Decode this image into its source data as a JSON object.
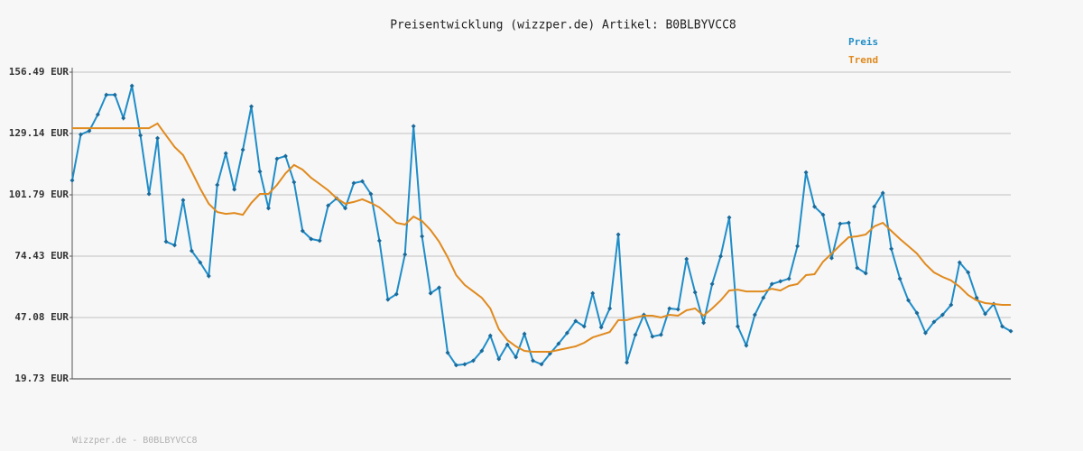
{
  "chart_data": {
    "type": "line",
    "title": "Preisentwicklung (wizzper.de) Artikel: B0BLBYVCC8",
    "footer": "Wizzper.de - B0BLBYVCC8",
    "ylim": [
      19.73,
      156.49
    ],
    "yticks": [
      {
        "value": 19.73,
        "label": "19.73 EUR"
      },
      {
        "value": 47.08,
        "label": "47.08 EUR"
      },
      {
        "value": 74.43,
        "label": "74.43 EUR"
      },
      {
        "value": 101.79,
        "label": "101.79 EUR"
      },
      {
        "value": 129.14,
        "label": "129.14 EUR"
      },
      {
        "value": 156.49,
        "label": "156.49 EUR"
      }
    ],
    "grid": true,
    "legend": "top-right",
    "series": [
      {
        "name": "Preis",
        "color": "#1f8dc8",
        "markers": true,
        "values": [
          108.2,
          128.7,
          130.3,
          137.6,
          146.4,
          146.4,
          136.0,
          150.4,
          128.3,
          102.2,
          127.1,
          80.9,
          79.3,
          99.4,
          76.8,
          71.6,
          65.6,
          106.2,
          120.3,
          104.2,
          121.9,
          141.2,
          112.2,
          95.8,
          117.9,
          119.1,
          107.4,
          85.7,
          82.1,
          81.3,
          97.0,
          100.2,
          95.8,
          107.0,
          107.8,
          102.2,
          81.3,
          55.1,
          57.5,
          75.2,
          132.4,
          83.3,
          57.9,
          60.4,
          31.4,
          25.8,
          26.2,
          27.8,
          32.2,
          39.0,
          28.6,
          35.0,
          29.4,
          39.8,
          27.8,
          26.2,
          31.0,
          35.4,
          40.2,
          45.5,
          43.1,
          57.9,
          42.7,
          51.1,
          84.1,
          27.0,
          39.4,
          48.3,
          38.6,
          39.4,
          51.1,
          50.7,
          73.2,
          58.3,
          44.7,
          62.0,
          74.4,
          91.7,
          43.1,
          34.6,
          48.3,
          55.9,
          62.0,
          63.2,
          64.4,
          78.9,
          111.8,
          96.5,
          92.9,
          73.6,
          88.9,
          89.3,
          69.2,
          66.8,
          96.5,
          102.6,
          77.7,
          64.4,
          54.7,
          49.1,
          40.2,
          45.1,
          48.3,
          52.7,
          71.6,
          67.2,
          55.9,
          48.7,
          53.1,
          43.1,
          41.0
        ]
      },
      {
        "name": "Trend",
        "color": "#e08a1e",
        "markers": false,
        "values": [
          131.5,
          131.5,
          131.5,
          131.5,
          131.5,
          131.5,
          131.5,
          131.5,
          131.5,
          131.5,
          133.6,
          128.3,
          123.1,
          119.5,
          112.2,
          104.6,
          97.8,
          94.1,
          93.3,
          93.7,
          92.9,
          98.2,
          102.2,
          102.2,
          106.2,
          111.4,
          115.1,
          113.0,
          109.4,
          106.6,
          103.8,
          100.2,
          97.8,
          98.6,
          99.8,
          98.2,
          96.2,
          92.9,
          89.3,
          88.5,
          92.1,
          90.1,
          86.1,
          80.9,
          74.0,
          66.0,
          61.6,
          58.7,
          55.9,
          51.1,
          41.9,
          37.0,
          34.2,
          32.2,
          31.8,
          31.8,
          31.8,
          32.6,
          33.4,
          34.2,
          35.8,
          38.2,
          39.4,
          40.6,
          45.9,
          45.9,
          47.1,
          47.9,
          47.9,
          47.1,
          48.3,
          47.9,
          50.3,
          51.1,
          47.9,
          51.1,
          54.7,
          59.1,
          59.5,
          58.7,
          58.7,
          58.7,
          59.9,
          59.1,
          61.2,
          62.0,
          66.0,
          66.4,
          72.0,
          75.6,
          79.3,
          82.9,
          83.3,
          84.1,
          87.7,
          89.3,
          85.7,
          82.1,
          78.9,
          75.6,
          70.8,
          67.2,
          65.2,
          63.6,
          60.8,
          57.1,
          54.7,
          53.5,
          53.1,
          52.7,
          52.7
        ]
      }
    ]
  }
}
